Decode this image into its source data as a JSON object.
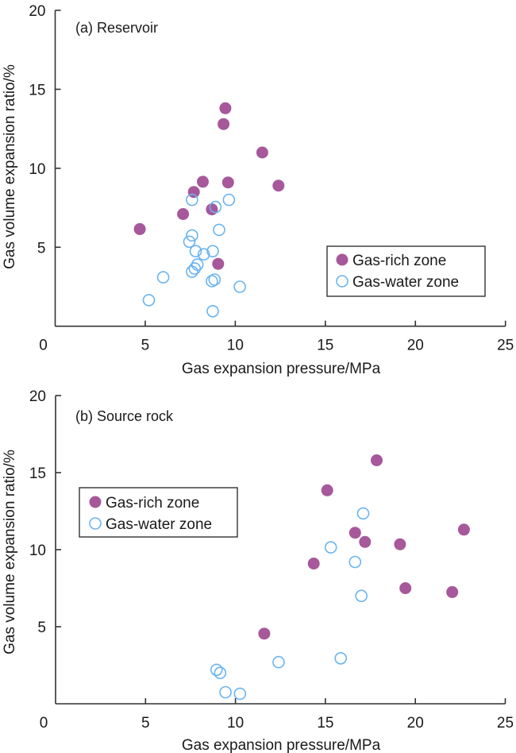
{
  "colors": {
    "gas_rich": "#a6589a",
    "gas_water": "#6ab4f0",
    "axis": "#333333"
  },
  "chart_data": [
    {
      "type": "scatter",
      "title": "(a) Reservoir",
      "xlabel": "Gas expansion pressure/MPa",
      "ylabel": "Gas volume expansion ratio/%",
      "xlim": [
        0,
        25
      ],
      "ylim": [
        0,
        20
      ],
      "xticks": [
        "0",
        "5",
        "10",
        "15",
        "20",
        "25"
      ],
      "yticks": [
        "5",
        "10",
        "15",
        "20"
      ],
      "grid": false,
      "legend_position": "bottom-right",
      "series": [
        {
          "name": "Gas-rich zone",
          "marker": "filled-circle",
          "points": [
            [
              9.45,
              13.8
            ],
            [
              9.35,
              12.8
            ],
            [
              11.5,
              11.0
            ],
            [
              8.2,
              9.15
            ],
            [
              9.6,
              9.1
            ],
            [
              12.4,
              8.9
            ],
            [
              7.7,
              8.5
            ],
            [
              7.1,
              7.1
            ],
            [
              8.7,
              7.4
            ],
            [
              4.7,
              6.15
            ],
            [
              9.05,
              3.95
            ]
          ]
        },
        {
          "name": "Gas-water zone",
          "marker": "open-circle",
          "points": [
            [
              7.6,
              8.0
            ],
            [
              9.65,
              8.0
            ],
            [
              8.9,
              7.55
            ],
            [
              9.1,
              6.1
            ],
            [
              7.6,
              5.75
            ],
            [
              7.45,
              5.35
            ],
            [
              7.8,
              4.75
            ],
            [
              8.75,
              4.75
            ],
            [
              8.25,
              4.55
            ],
            [
              7.9,
              3.9
            ],
            [
              7.75,
              3.65
            ],
            [
              7.6,
              3.45
            ],
            [
              6.0,
              3.1
            ],
            [
              8.85,
              2.95
            ],
            [
              8.7,
              2.85
            ],
            [
              10.25,
              2.5
            ],
            [
              5.2,
              1.65
            ],
            [
              8.75,
              0.95
            ]
          ]
        }
      ]
    },
    {
      "type": "scatter",
      "title": "(b) Source rock",
      "xlabel": "Gas expansion pressure/MPa",
      "ylabel": "Gas volume expansion ratio/%",
      "xlim": [
        0,
        25
      ],
      "ylim": [
        0,
        20
      ],
      "xticks": [
        "0",
        "5",
        "10",
        "15",
        "20",
        "25"
      ],
      "yticks": [
        "5",
        "10",
        "15",
        "20"
      ],
      "grid": false,
      "legend_position": "top-left",
      "series": [
        {
          "name": "Gas-rich zone",
          "marker": "filled-circle",
          "points": [
            [
              17.85,
              15.8
            ],
            [
              15.1,
              13.85
            ],
            [
              16.65,
              11.1
            ],
            [
              17.2,
              10.5
            ],
            [
              19.15,
              10.35
            ],
            [
              22.7,
              11.3
            ],
            [
              14.35,
              9.1
            ],
            [
              19.45,
              7.5
            ],
            [
              22.05,
              7.25
            ],
            [
              11.6,
              4.55
            ]
          ]
        },
        {
          "name": "Gas-water zone",
          "marker": "open-circle",
          "points": [
            [
              17.1,
              12.35
            ],
            [
              15.3,
              10.15
            ],
            [
              16.65,
              9.2
            ],
            [
              17.0,
              7.0
            ],
            [
              15.85,
              2.95
            ],
            [
              12.4,
              2.7
            ],
            [
              8.95,
              2.2
            ],
            [
              9.15,
              2.0
            ],
            [
              9.45,
              0.75
            ],
            [
              10.25,
              0.65
            ]
          ]
        }
      ]
    }
  ]
}
